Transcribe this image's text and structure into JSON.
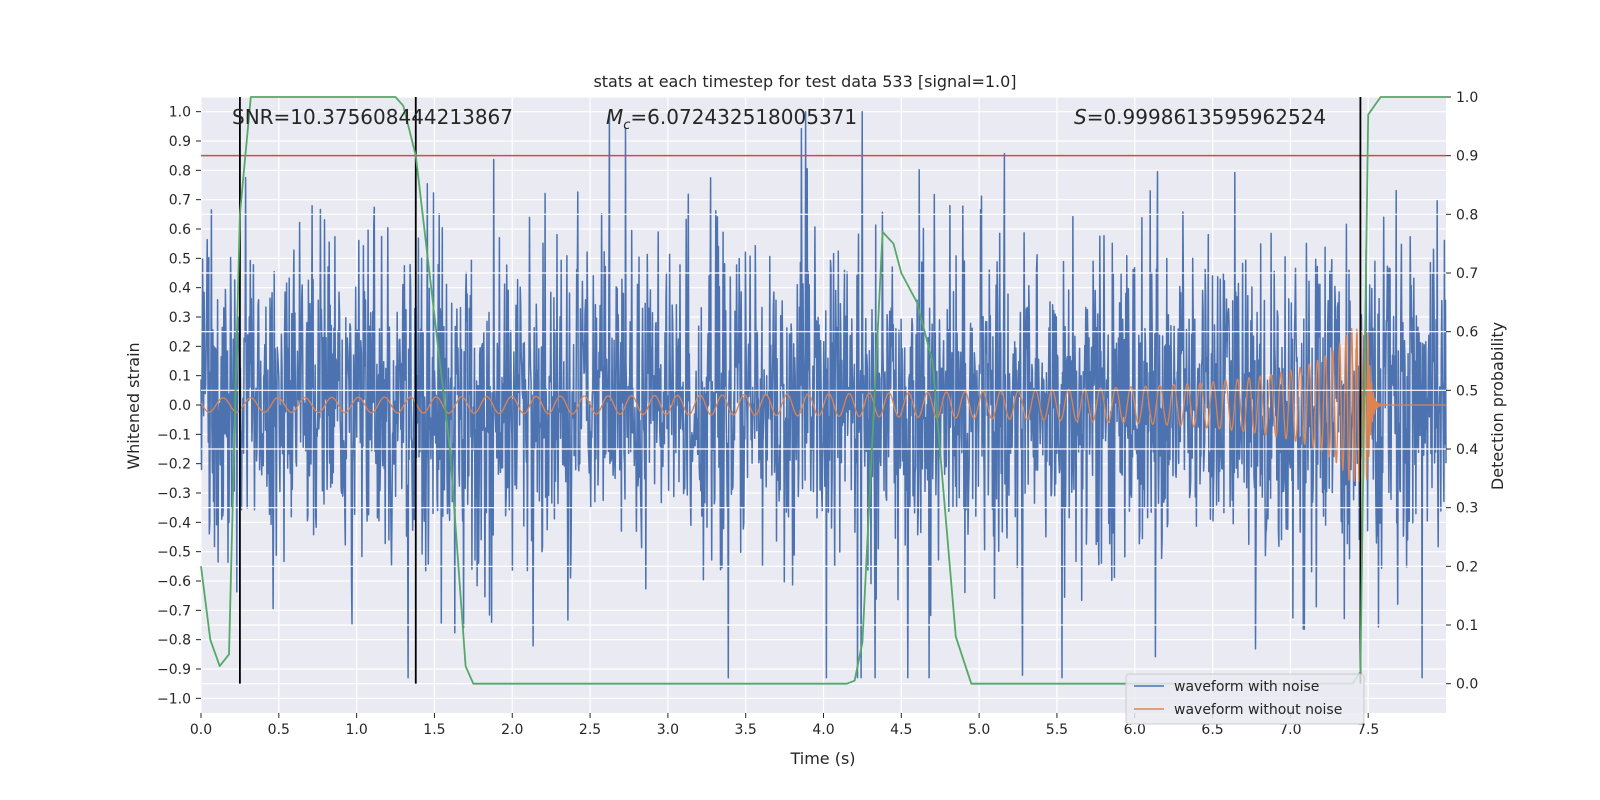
{
  "chart_data": {
    "type": "line",
    "title": "stats at each timestep for test data 533 [signal=1.0]",
    "xlabel": "Time (s)",
    "ylabel_left": "Whitened strain",
    "ylabel_right": "Detection probability",
    "xlim": [
      0.0,
      8.0
    ],
    "ylim_left": [
      -1.05,
      1.05
    ],
    "ylim_right": [
      -0.05,
      1.0
    ],
    "xticks": [
      "0.0",
      "0.5",
      "1.0",
      "1.5",
      "2.0",
      "2.5",
      "3.0",
      "3.5",
      "4.0",
      "4.5",
      "5.0",
      "5.5",
      "6.0",
      "6.5",
      "7.0",
      "7.5"
    ],
    "yticks_left": [
      "1.0",
      "0.9",
      "0.8",
      "0.7",
      "0.6",
      "0.5",
      "0.4",
      "0.3",
      "0.2",
      "0.1",
      "0.0",
      "−0.1",
      "−0.2",
      "−0.3",
      "−0.4",
      "−0.5",
      "−0.6",
      "−0.7",
      "−0.8",
      "−0.9",
      "−1.0"
    ],
    "yticks_right": [
      "1.0",
      "0.9",
      "0.8",
      "0.7",
      "0.6",
      "0.5",
      "0.4",
      "0.3",
      "0.2",
      "0.1",
      "0.0"
    ],
    "annotations": {
      "snr": "SNR=10.375608444213867",
      "mc_symbol": "M",
      "mc_sub": "c",
      "mc_value": "=6.072432518005371",
      "s_symbol": "S",
      "s_value": "=0.9998613595962524"
    },
    "threshold": {
      "value": 0.9,
      "axis": "right",
      "color": "#c44e52"
    },
    "vlines": [
      0.25,
      1.38,
      7.45
    ],
    "series": [
      {
        "name": "waveform with noise",
        "color": "#4c72b0",
        "axis": "left",
        "kind": "noise",
        "amplitude_max": 1.0
      },
      {
        "name": "waveform without noise",
        "color": "#dd8452",
        "axis": "left",
        "kind": "chirp",
        "t_merge": 7.5,
        "peak_amplitude": 0.26
      },
      {
        "name": "detection probability",
        "color": "#55a868",
        "axis": "right",
        "points": [
          [
            0.0,
            0.2
          ],
          [
            0.06,
            0.075
          ],
          [
            0.12,
            0.03
          ],
          [
            0.18,
            0.05
          ],
          [
            0.25,
            0.8
          ],
          [
            0.32,
            1.0
          ],
          [
            1.25,
            1.0
          ],
          [
            1.3,
            0.985
          ],
          [
            1.38,
            0.9
          ],
          [
            1.6,
            0.4
          ],
          [
            1.7,
            0.03
          ],
          [
            1.75,
            0.0
          ],
          [
            4.15,
            0.0
          ],
          [
            4.2,
            0.005
          ],
          [
            4.25,
            0.07
          ],
          [
            4.38,
            0.77
          ],
          [
            4.45,
            0.75
          ],
          [
            4.5,
            0.7
          ],
          [
            4.6,
            0.65
          ],
          [
            4.7,
            0.55
          ],
          [
            4.85,
            0.08
          ],
          [
            4.95,
            0.0
          ],
          [
            7.4,
            0.0
          ],
          [
            7.45,
            0.02
          ],
          [
            7.5,
            0.97
          ],
          [
            7.58,
            1.0
          ],
          [
            8.0,
            1.0
          ]
        ]
      }
    ],
    "legend": {
      "position": "lower-right",
      "items": [
        "waveform with noise",
        "waveform without noise"
      ]
    },
    "grid": true
  }
}
